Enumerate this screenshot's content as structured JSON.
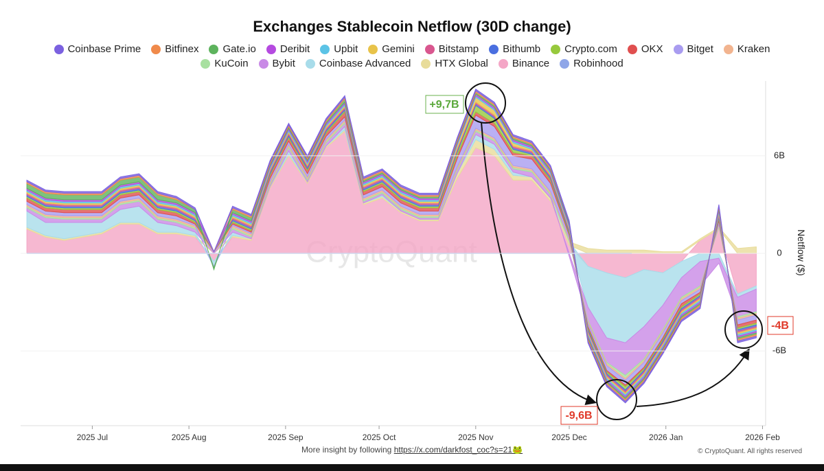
{
  "chart_data": {
    "type": "stacked_area",
    "title": "Exchanges Stablecoin Netflow (30D change)",
    "y_label": "Netflow ($)",
    "watermark": "CryptoQuant",
    "annotations": [
      "+9,7B",
      "-9,6B",
      "-4B"
    ],
    "footer": "More insight by following",
    "footer_link": "https://x.com/darkfost_coc?s=21🐸",
    "copyright": "© CryptoQuant. All rights reserved",
    "x": [
      9,
      15,
      21,
      27,
      33,
      39,
      45,
      51,
      57,
      63,
      69,
      75,
      81,
      87,
      93,
      99,
      105,
      111,
      117,
      123,
      129,
      135,
      141,
      147,
      153,
      159,
      165,
      171,
      177,
      183,
      189,
      195,
      201,
      207,
      213,
      219,
      225,
      231,
      237,
      243
    ],
    "xlim": [
      7,
      246
    ],
    "xticks": [
      {
        "value": 30,
        "label": "2025 Jul"
      },
      {
        "value": 61,
        "label": "2025 Aug"
      },
      {
        "value": 92,
        "label": "2025 Sep"
      },
      {
        "value": 122,
        "label": "2025 Oct"
      },
      {
        "value": 153,
        "label": "2025 Nov"
      },
      {
        "value": 183,
        "label": "2025 Dec"
      },
      {
        "value": 214,
        "label": "2026 Jan"
      },
      {
        "value": 245,
        "label": "2026 Feb"
      }
    ],
    "ylim": [
      -10.6,
      10.6
    ],
    "yticks": [
      {
        "value": 6,
        "label": "6B"
      },
      0,
      {
        "value": -6,
        "label": "-6B"
      }
    ],
    "grid": true,
    "series": [
      {
        "name": "Coinbase Prime",
        "color": "#7b61e0",
        "values": [
          0.1,
          0.1,
          0.1,
          0.1,
          0.1,
          0.1,
          0.1,
          0.1,
          0.1,
          0.1,
          0.0,
          0.1,
          0.1,
          0.1,
          0.1,
          0.1,
          0.1,
          0.1,
          0.1,
          0.1,
          0.1,
          0.1,
          0.1,
          0.1,
          0.1,
          0.1,
          0.1,
          0.1,
          0.1,
          0.1,
          -0.1,
          -0.1,
          -0.1,
          -0.1,
          -0.1,
          -0.1,
          -0.1,
          0.1,
          -0.1,
          -0.1
        ]
      },
      {
        "name": "Bitfinex",
        "color": "#f08a4b",
        "values": [
          0.1,
          0.1,
          0.1,
          0.1,
          0.1,
          0.1,
          0.1,
          0.1,
          0.1,
          0.0,
          0.0,
          0.1,
          0.1,
          0.1,
          0.1,
          0.1,
          0.1,
          0.1,
          0.1,
          0.1,
          0.1,
          0.1,
          0.1,
          0.1,
          0.1,
          0.1,
          0.1,
          0.1,
          0.1,
          0.0,
          -0.1,
          -0.1,
          -0.1,
          -0.1,
          -0.1,
          -0.1,
          -0.1,
          0.1,
          -0.1,
          -0.1
        ]
      },
      {
        "name": "Gate.io",
        "color": "#5db35d",
        "values": [
          0.3,
          0.3,
          0.3,
          0.3,
          0.3,
          0.3,
          0.3,
          0.3,
          0.2,
          0.2,
          -0.1,
          0.2,
          0.2,
          0.1,
          0.1,
          0.1,
          0.1,
          0.2,
          0.1,
          0.1,
          0.1,
          0.1,
          0.1,
          0.1,
          0.1,
          0.1,
          0.1,
          0.1,
          0.1,
          0.1,
          -0.1,
          -0.1,
          -0.1,
          -0.1,
          -0.1,
          -0.1,
          -0.1,
          0.1,
          -0.1,
          -0.1
        ]
      },
      {
        "name": "Deribit",
        "color": "#b54ae0",
        "values": [
          0.1,
          0.1,
          0.1,
          0.1,
          0.1,
          0.1,
          0.1,
          0.1,
          0.1,
          0.1,
          0.0,
          0.1,
          0.1,
          0.1,
          0.1,
          0.1,
          0.1,
          0.1,
          0.1,
          0.1,
          0.1,
          0.1,
          0.1,
          0.1,
          0.1,
          0.1,
          0.1,
          0.1,
          0.1,
          0.1,
          -0.1,
          -0.1,
          -0.1,
          -0.1,
          -0.1,
          -0.1,
          -0.1,
          0.1,
          -0.1,
          -0.1
        ]
      },
      {
        "name": "Upbit",
        "color": "#5bc3e6",
        "values": [
          0.1,
          0.1,
          0.1,
          0.1,
          0.1,
          0.1,
          0.1,
          0.1,
          0.1,
          0.1,
          0.0,
          0.1,
          0.1,
          0.1,
          0.1,
          0.1,
          0.1,
          0.1,
          0.1,
          0.1,
          0.1,
          0.1,
          0.1,
          0.1,
          0.1,
          0.1,
          0.1,
          0.1,
          0.1,
          0.1,
          -0.1,
          -0.1,
          -0.1,
          -0.1,
          -0.1,
          -0.1,
          -0.1,
          0.1,
          -0.1,
          -0.1
        ]
      },
      {
        "name": "Gemini",
        "color": "#e8c34a",
        "values": [
          0.1,
          0.1,
          0.1,
          0.1,
          0.1,
          0.1,
          0.1,
          0.1,
          0.1,
          0.1,
          0.0,
          0.1,
          0.1,
          0.1,
          0.1,
          0.1,
          0.1,
          0.1,
          0.1,
          0.1,
          0.1,
          0.1,
          0.1,
          0.2,
          0.3,
          0.3,
          0.2,
          0.1,
          0.1,
          0.1,
          -0.1,
          -0.1,
          -0.1,
          -0.1,
          -0.1,
          -0.1,
          -0.1,
          0.1,
          -0.1,
          -0.1
        ]
      },
      {
        "name": "Bitstamp",
        "color": "#d9578f",
        "values": [
          0.1,
          0.1,
          0.1,
          0.1,
          0.1,
          0.1,
          0.1,
          0.1,
          0.1,
          0.1,
          0.0,
          0.1,
          0.1,
          0.1,
          0.1,
          0.1,
          0.1,
          0.1,
          0.1,
          0.1,
          0.1,
          0.1,
          0.1,
          0.1,
          0.1,
          0.1,
          0.1,
          0.1,
          0.1,
          0.1,
          -0.1,
          -0.1,
          -0.1,
          -0.1,
          -0.1,
          -0.1,
          -0.1,
          0.1,
          -0.1,
          -0.1
        ]
      },
      {
        "name": "Bithumb",
        "color": "#4a6fe0",
        "values": [
          0.1,
          0.1,
          0.1,
          0.1,
          0.1,
          0.1,
          0.1,
          0.1,
          0.1,
          0.1,
          0.0,
          0.1,
          0.1,
          0.1,
          0.1,
          0.1,
          0.1,
          0.1,
          0.1,
          0.1,
          0.1,
          0.1,
          0.1,
          0.1,
          0.1,
          0.1,
          0.1,
          0.1,
          0.1,
          0.1,
          -0.1,
          -0.1,
          -0.1,
          -0.1,
          -0.1,
          -0.1,
          -0.1,
          0.1,
          -0.1,
          -0.1
        ]
      },
      {
        "name": "Crypto.com",
        "color": "#97c93d",
        "values": [
          0.1,
          0.1,
          0.1,
          0.1,
          0.1,
          0.1,
          0.1,
          0.1,
          0.1,
          0.1,
          0.0,
          0.1,
          0.1,
          0.1,
          0.1,
          0.1,
          0.1,
          0.1,
          0.1,
          0.1,
          0.1,
          0.1,
          0.1,
          0.2,
          0.4,
          0.3,
          0.2,
          0.1,
          0.1,
          0.1,
          -0.1,
          -0.1,
          -0.2,
          -0.1,
          -0.1,
          -0.1,
          -0.1,
          0.1,
          -0.1,
          -0.1
        ]
      },
      {
        "name": "OKX",
        "color": "#e04f4f",
        "values": [
          0.2,
          0.2,
          0.2,
          0.2,
          0.2,
          0.2,
          0.2,
          0.2,
          0.2,
          0.1,
          0.0,
          0.1,
          0.1,
          0.2,
          0.2,
          0.2,
          0.2,
          0.3,
          0.2,
          0.2,
          0.2,
          0.2,
          0.2,
          0.2,
          0.2,
          0.2,
          0.2,
          0.2,
          0.2,
          0.1,
          -0.1,
          -0.1,
          -0.1,
          -0.1,
          -0.1,
          -0.2,
          -0.1,
          0.1,
          -0.2,
          -0.2
        ]
      },
      {
        "name": "Bitget",
        "color": "#a99cf0",
        "values": [
          0.2,
          0.2,
          0.2,
          0.2,
          0.2,
          0.2,
          0.2,
          0.2,
          0.2,
          0.1,
          -0.1,
          0.1,
          0.1,
          0.2,
          0.2,
          0.2,
          0.2,
          0.2,
          0.2,
          0.2,
          0.2,
          0.2,
          0.2,
          0.5,
          0.8,
          0.7,
          0.6,
          0.6,
          0.5,
          0.2,
          -0.2,
          -0.3,
          -0.3,
          -0.3,
          -0.3,
          -0.2,
          -0.2,
          0.2,
          -0.3,
          -0.3
        ]
      },
      {
        "name": "Kraken",
        "color": "#f2b48f",
        "values": [
          0.1,
          0.1,
          0.1,
          0.1,
          0.1,
          0.1,
          0.1,
          0.1,
          0.1,
          0.1,
          0.0,
          0.1,
          0.1,
          0.1,
          0.1,
          0.1,
          0.1,
          0.1,
          0.1,
          0.1,
          0.1,
          0.1,
          0.1,
          0.1,
          0.1,
          0.1,
          0.1,
          0.1,
          0.1,
          0.1,
          -0.1,
          -0.1,
          -0.1,
          -0.1,
          -0.1,
          -0.1,
          -0.1,
          0.1,
          -0.1,
          -0.1
        ]
      },
      {
        "name": "KuCoin",
        "color": "#a8e0a0",
        "values": [
          0.1,
          0.1,
          0.1,
          0.1,
          0.1,
          0.1,
          0.1,
          0.1,
          0.1,
          0.1,
          0.0,
          0.1,
          0.1,
          0.1,
          0.1,
          0.1,
          0.1,
          0.1,
          0.1,
          0.1,
          0.1,
          0.1,
          0.1,
          0.1,
          0.1,
          0.1,
          0.1,
          0.1,
          0.1,
          0.1,
          -0.1,
          -0.1,
          -0.2,
          -0.1,
          -0.1,
          -0.1,
          -0.1,
          0.1,
          -0.1,
          -0.1
        ]
      },
      {
        "name": "Bybit",
        "color": "#c98ae6",
        "values": [
          0.2,
          0.3,
          0.2,
          0.2,
          0.2,
          0.3,
          0.3,
          0.2,
          0.2,
          0.2,
          0.1,
          0.2,
          0.1,
          0.1,
          0.2,
          0.1,
          0.2,
          0.2,
          0.1,
          0.1,
          0.1,
          0.1,
          0.1,
          0.2,
          0.2,
          0.2,
          0.2,
          0.3,
          0.2,
          -0.2,
          -0.8,
          -1.5,
          -2.0,
          -2.0,
          -1.5,
          -1.2,
          -1.5,
          -0.3,
          -1.2,
          -1.4
        ]
      },
      {
        "name": "Coinbase Advanced",
        "color": "#a8dcea",
        "values": [
          1.0,
          0.8,
          1.0,
          0.8,
          0.6,
          0.8,
          1.0,
          0.6,
          0.4,
          0.2,
          -0.3,
          0.2,
          0.0,
          0.0,
          0.2,
          0.0,
          0.0,
          0.2,
          0.0,
          0.1,
          0.0,
          0.0,
          0.0,
          0.0,
          0.3,
          0.3,
          0.2,
          0.0,
          0.0,
          0.0,
          -2.5,
          -4.0,
          -4.0,
          -3.5,
          -2.0,
          -1.0,
          -0.5,
          -0.3,
          -0.2,
          -0.2
        ]
      },
      {
        "name": "HTX Global",
        "color": "#e8dc9a",
        "values": [
          0.1,
          0.1,
          0.1,
          0.1,
          0.1,
          0.1,
          0.1,
          0.1,
          0.1,
          0.1,
          0.0,
          0.1,
          0.1,
          0.1,
          0.1,
          0.1,
          0.1,
          0.1,
          0.1,
          0.1,
          0.1,
          0.1,
          0.1,
          0.3,
          0.5,
          0.4,
          0.3,
          0.2,
          0.2,
          0.2,
          0.3,
          0.2,
          0.2,
          0.2,
          0.1,
          0.1,
          0.1,
          0.1,
          0.3,
          0.4
        ]
      },
      {
        "name": "Binance",
        "color": "#f4a6c6",
        "values": [
          1.5,
          1.0,
          0.8,
          1.0,
          1.2,
          1.8,
          1.8,
          1.2,
          1.2,
          1.0,
          -0.5,
          1.0,
          0.8,
          4.0,
          6.0,
          4.3,
          6.5,
          7.5,
          3.0,
          3.4,
          2.5,
          2.0,
          2.0,
          4.6,
          6.5,
          6.0,
          4.5,
          4.5,
          3.2,
          0.5,
          -0.8,
          -1.2,
          -1.5,
          -1.0,
          -1.2,
          -0.5,
          0.8,
          1.5,
          -2.5,
          -2.0
        ]
      },
      {
        "name": "Robinhood",
        "color": "#8fa6e8",
        "values": [
          0.0,
          0.0,
          0.0,
          0.0,
          0.0,
          0.0,
          0.0,
          0.0,
          0.0,
          0.0,
          0.0,
          0.0,
          0.0,
          0.0,
          0.0,
          0.0,
          0.0,
          0.0,
          0.0,
          0.0,
          0.0,
          0.0,
          0.0,
          0.0,
          0.0,
          0.0,
          0.0,
          0.0,
          0.0,
          0.0,
          0.0,
          0.0,
          0.0,
          0.0,
          0.0,
          0.0,
          0.0,
          0.0,
          0.0,
          0.0
        ]
      }
    ]
  }
}
